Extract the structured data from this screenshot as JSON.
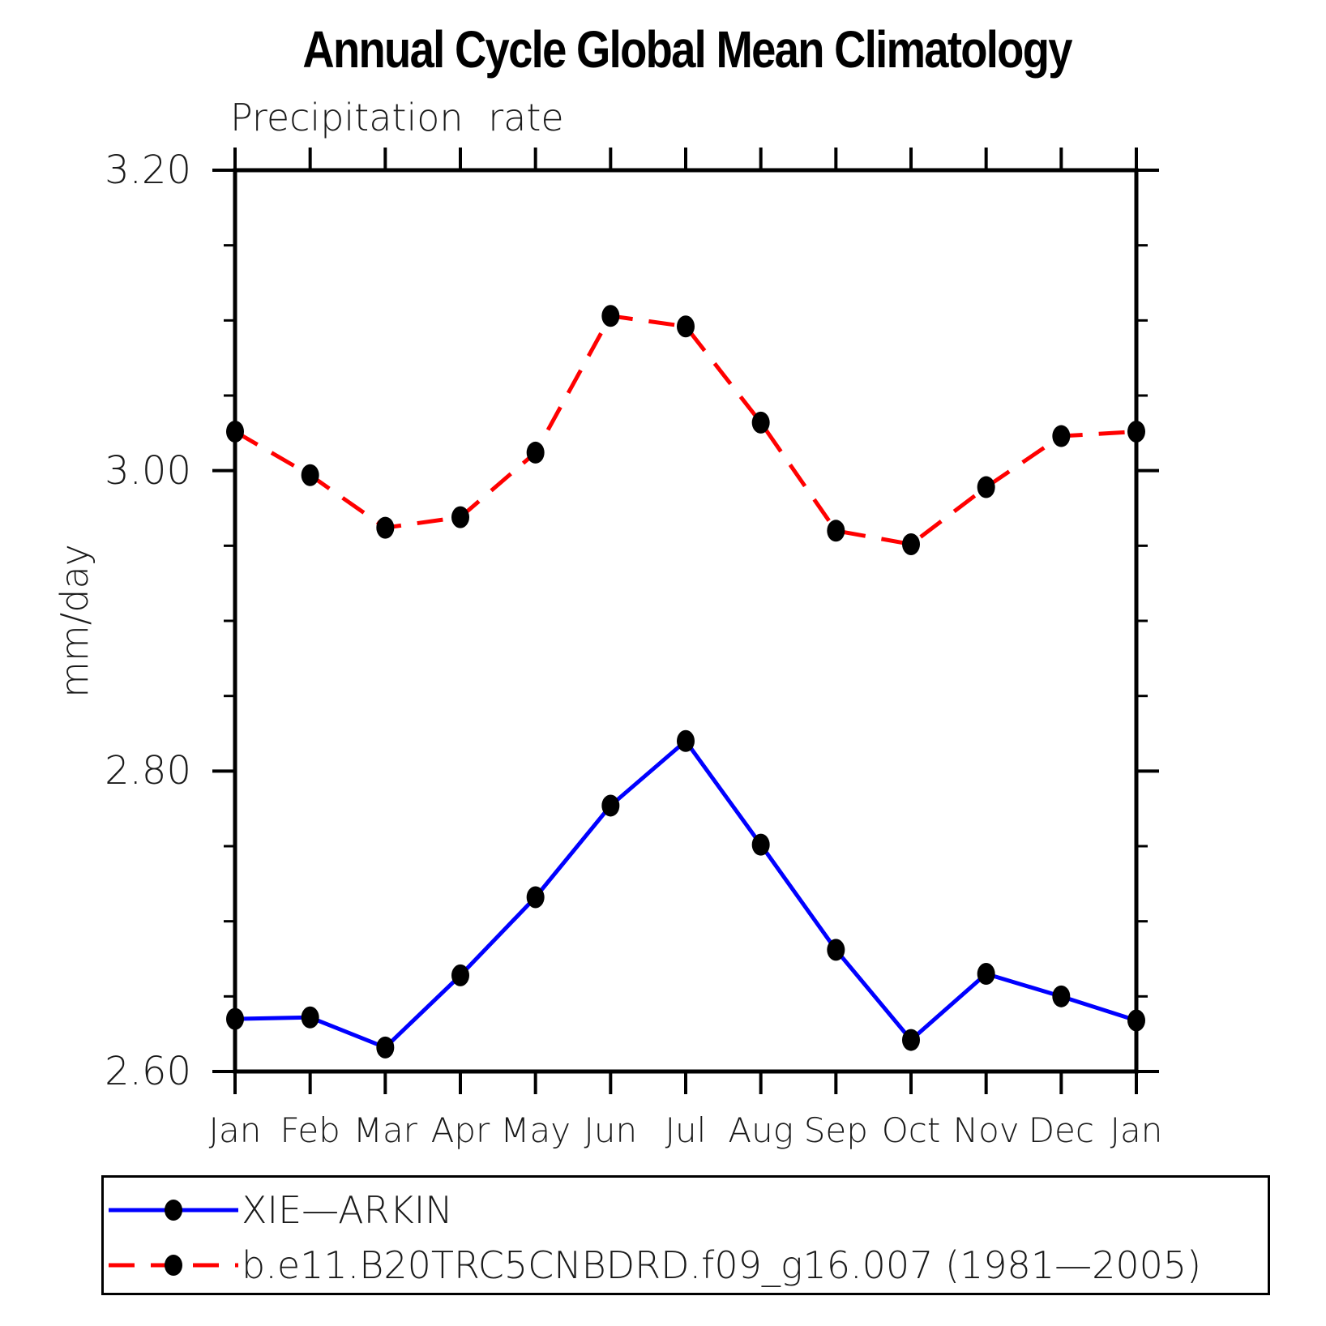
{
  "title": "Annual Cycle Global Mean Climatology",
  "subtitle": "Precipitation rate",
  "y_axis_title": "mm/day",
  "colors": {
    "axis": "#000000",
    "marker": "#000000",
    "obs_line": "#0000ff",
    "model_line": "#ff0000",
    "text": "#1a1a1a"
  },
  "chart_data": {
    "type": "line",
    "x_categories": [
      "Jan",
      "Feb",
      "Mar",
      "Apr",
      "May",
      "Jun",
      "Jul",
      "Aug",
      "Sep",
      "Oct",
      "Nov",
      "Dec",
      "Jan"
    ],
    "series": [
      {
        "name": "XIE—ARKIN",
        "color": "#0000ff",
        "line_style": "solid",
        "marker": "filled-circle",
        "marker_color": "#000000",
        "values": [
          2.635,
          2.636,
          2.616,
          2.664,
          2.716,
          2.777,
          2.82,
          2.751,
          2.681,
          2.621,
          2.665,
          2.65,
          2.634
        ]
      },
      {
        "name": "b.e11.B20TRC5CNBDRD.f09_g16.007 (1981—2005)",
        "color": "#ff0000",
        "line_style": "dashed",
        "marker": "filled-circle",
        "marker_color": "#000000",
        "values": [
          3.026,
          2.997,
          2.962,
          2.969,
          3.012,
          3.103,
          3.096,
          3.032,
          2.96,
          2.951,
          2.989,
          3.023,
          3.026
        ]
      }
    ],
    "title": "Annual Cycle Global Mean Climatology",
    "subtitle": "Precipitation rate",
    "xlabel": "",
    "ylabel": "mm/day",
    "ylim": [
      2.6,
      3.2
    ],
    "y_major_ticks": [
      3.2,
      3.0,
      2.8,
      2.6
    ],
    "y_major_tick_labels": [
      "3.20",
      "3.00",
      "2.80",
      "2.60"
    ],
    "y_minor_tick_interval": 0.05,
    "grid": false,
    "legend_position": "bottom-box"
  }
}
